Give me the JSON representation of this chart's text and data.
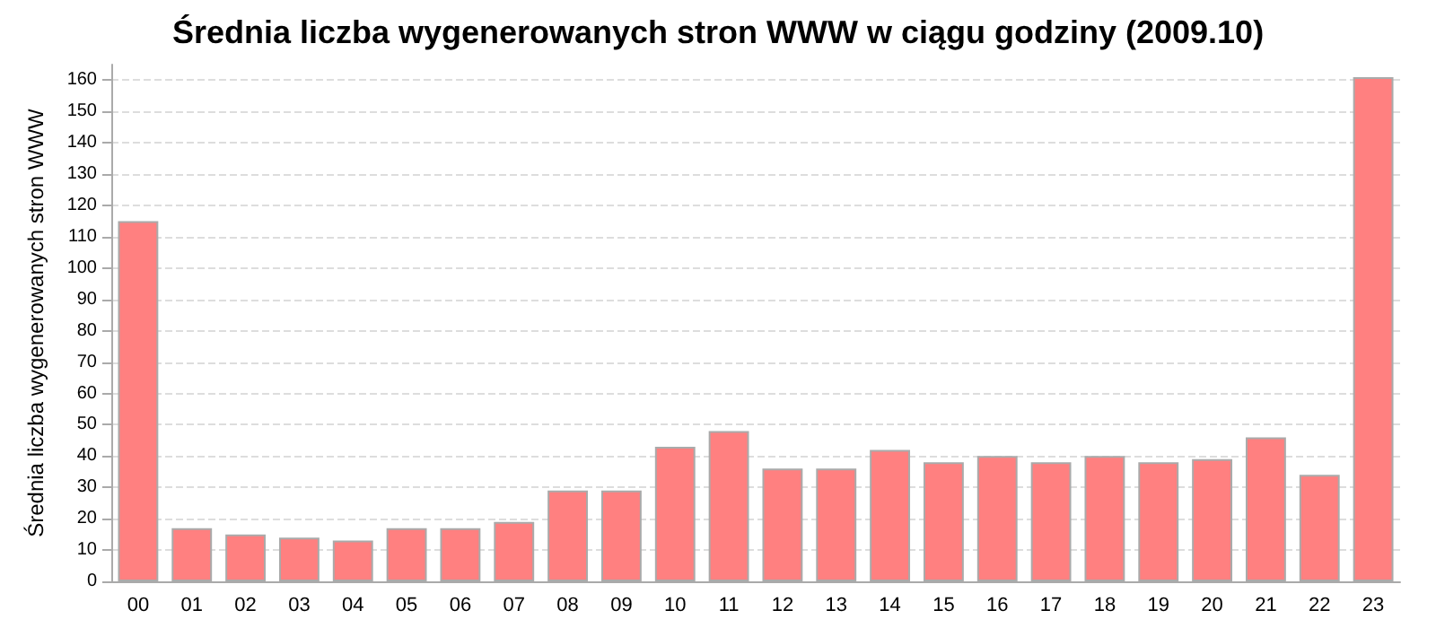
{
  "chart_data": {
    "type": "bar",
    "title": "Średnia liczba wygenerowanych stron WWW w ciągu godziny (2009.10)",
    "ylabel": "Średnia liczba wygenerowanych stron WWW",
    "categories": [
      "00",
      "01",
      "02",
      "03",
      "04",
      "05",
      "06",
      "07",
      "08",
      "09",
      "10",
      "11",
      "12",
      "13",
      "14",
      "15",
      "16",
      "17",
      "18",
      "19",
      "20",
      "21",
      "22",
      "23"
    ],
    "values": [
      115,
      17,
      15,
      14,
      13,
      17,
      17,
      19,
      29,
      29,
      43,
      48,
      36,
      36,
      42,
      38,
      40,
      38,
      40,
      38,
      39,
      46,
      34,
      161
    ],
    "color": "#ff8080",
    "ylim": [
      0,
      165
    ],
    "yticks": [
      0,
      10,
      20,
      30,
      40,
      50,
      60,
      70,
      80,
      90,
      100,
      110,
      120,
      130,
      140,
      150,
      160
    ],
    "grid": "y"
  }
}
